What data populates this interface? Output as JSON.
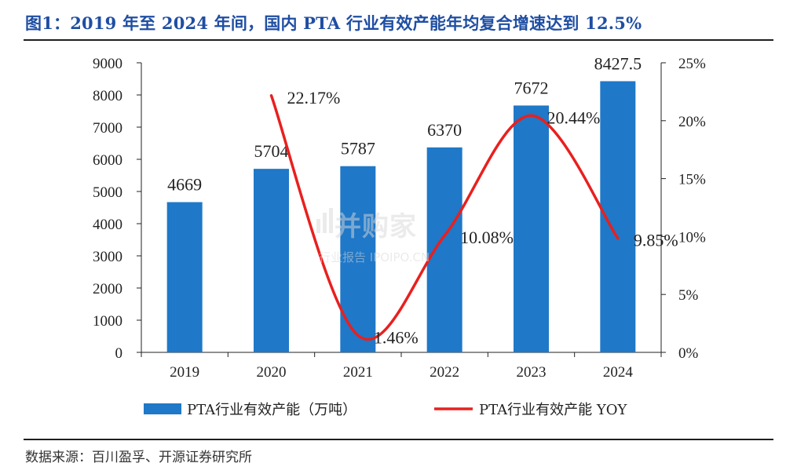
{
  "figure": {
    "title": "图1：2019 年至 2024 年间，国内 PTA 行业有效产能年均复合增速达到 12.5%",
    "source": "数据来源：百川盈孚、开源证券研究所",
    "watermark": {
      "main": "并购家",
      "sub": "行业报告 IPOIPO.CN"
    }
  },
  "colors": {
    "bar": "#1f78c8",
    "line": "#e8201e",
    "title": "#1f4ea3"
  },
  "chart_data": {
    "type": "bar",
    "categories": [
      "2019",
      "2020",
      "2021",
      "2022",
      "2023",
      "2024"
    ],
    "series": [
      {
        "name": "PTA行业有效产能（万吨）",
        "type": "bar",
        "axis": "left",
        "values": [
          4669,
          5704,
          5787,
          6370,
          7672,
          8427.5
        ],
        "labels": [
          "4669",
          "5704",
          "5787",
          "6370",
          "7672",
          "8427.5"
        ]
      },
      {
        "name": "PTA行业有效产能 YOY",
        "type": "line",
        "smooth": true,
        "axis": "right",
        "x": [
          "2020",
          "2021",
          "2022",
          "2023",
          "2024"
        ],
        "values": [
          22.17,
          1.46,
          10.08,
          20.44,
          9.85
        ],
        "labels": [
          "22.17%",
          "1.46%",
          "10.08%",
          "20.44%",
          "9.85%"
        ]
      }
    ],
    "y_left": {
      "min": 0,
      "max": 9000,
      "step": 1000,
      "ticks": [
        "0",
        "1000",
        "2000",
        "3000",
        "4000",
        "5000",
        "6000",
        "7000",
        "8000",
        "9000"
      ]
    },
    "y_right": {
      "min": 0,
      "max": 25,
      "step": 5,
      "ticks": [
        "0%",
        "5%",
        "10%",
        "15%",
        "20%",
        "25%"
      ]
    },
    "grid": false,
    "legend": "bottom"
  }
}
